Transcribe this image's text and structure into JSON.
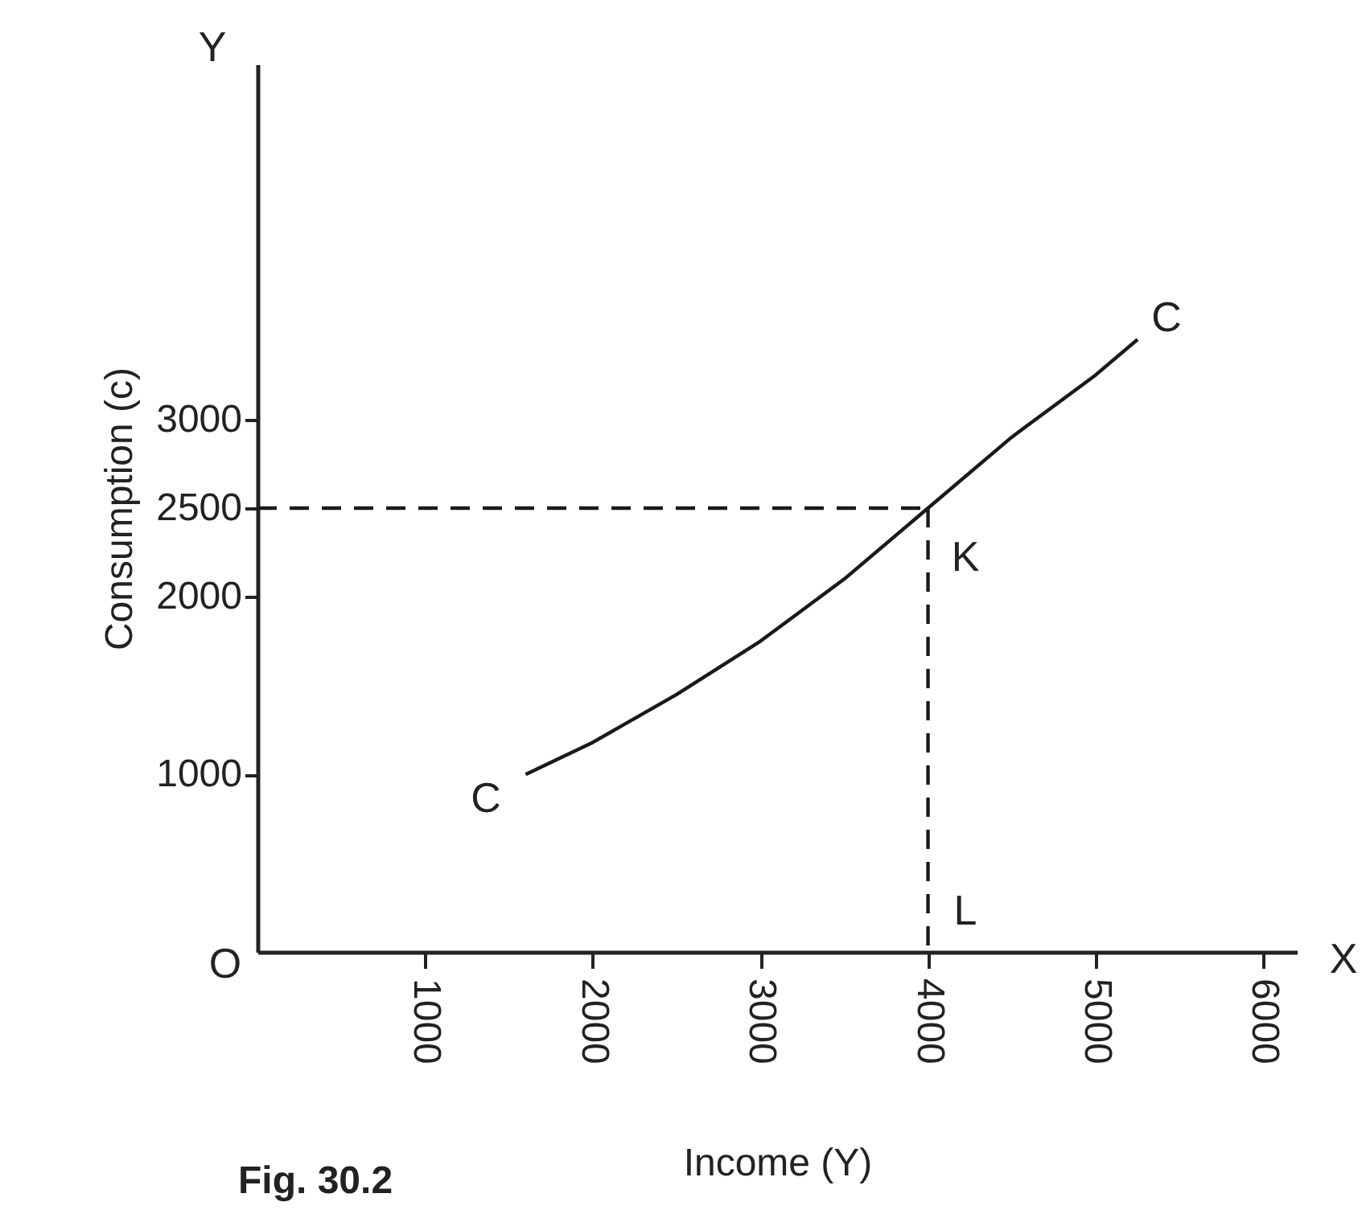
{
  "chart_data": {
    "type": "line",
    "xlabel": "Income (Y)",
    "ylabel": "Consumption    (c)",
    "xlim": [
      0,
      6200
    ],
    "ylim": [
      0,
      5000
    ],
    "xticks": [
      1000,
      2000,
      3000,
      4000,
      5000,
      6000
    ],
    "yticks": [
      1000,
      2000,
      2500,
      3000
    ],
    "series": [
      {
        "x": [
          1600,
          2000,
          2500,
          3000,
          3500,
          4000,
          4500,
          5000,
          5250
        ],
        "values": [
          1000,
          1180,
          1450,
          1750,
          2100,
          2500,
          2900,
          3250,
          3450
        ],
        "color": "#1a1a1a",
        "line_style": "solid"
      },
      {
        "x": [
          0,
          4000
        ],
        "values": [
          2500,
          2500
        ],
        "color": "#1a1a1a",
        "line_style": "dashed"
      },
      {
        "x": [
          4000,
          4000
        ],
        "values": [
          2500,
          0
        ],
        "color": "#1a1a1a",
        "line_style": "dashed"
      }
    ],
    "annotations": [
      "C",
      "C",
      "K",
      "L",
      "O",
      "X",
      "Y",
      "Fig. 30.2"
    ]
  }
}
